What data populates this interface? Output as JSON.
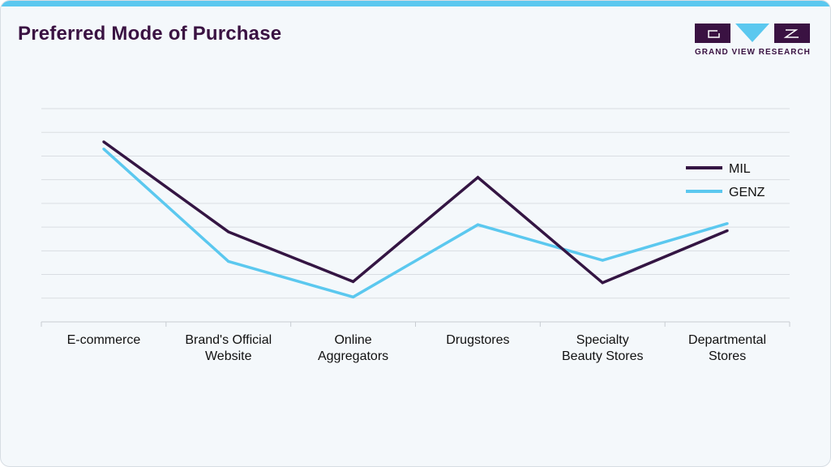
{
  "header": {
    "title": "Preferred Mode of Purchase",
    "logo_text": "GRAND VIEW RESEARCH"
  },
  "colors": {
    "accent": "#5bc8ef",
    "brand": "#3a1242",
    "mil": "#341543",
    "genz": "#5bc8ef"
  },
  "chart_data": {
    "type": "line",
    "title": "Preferred Mode of Purchase",
    "xlabel": "",
    "ylabel": "",
    "ylim": [
      0,
      9
    ],
    "grid": true,
    "legend_position": "right",
    "categories": [
      [
        "E-commerce"
      ],
      [
        "Brand's Official",
        "Website"
      ],
      [
        "Online",
        "Aggregators"
      ],
      [
        "Drugstores"
      ],
      [
        "Specialty",
        "Beauty Stores"
      ],
      [
        "Departmental",
        "Stores"
      ]
    ],
    "series": [
      {
        "name": "MIL",
        "color": "#341543",
        "values": [
          7.6,
          3.8,
          1.7,
          6.1,
          1.65,
          3.85
        ]
      },
      {
        "name": "GENZ",
        "color": "#5bc8ef",
        "values": [
          7.3,
          2.55,
          1.05,
          4.1,
          2.6,
          4.15
        ]
      }
    ]
  }
}
